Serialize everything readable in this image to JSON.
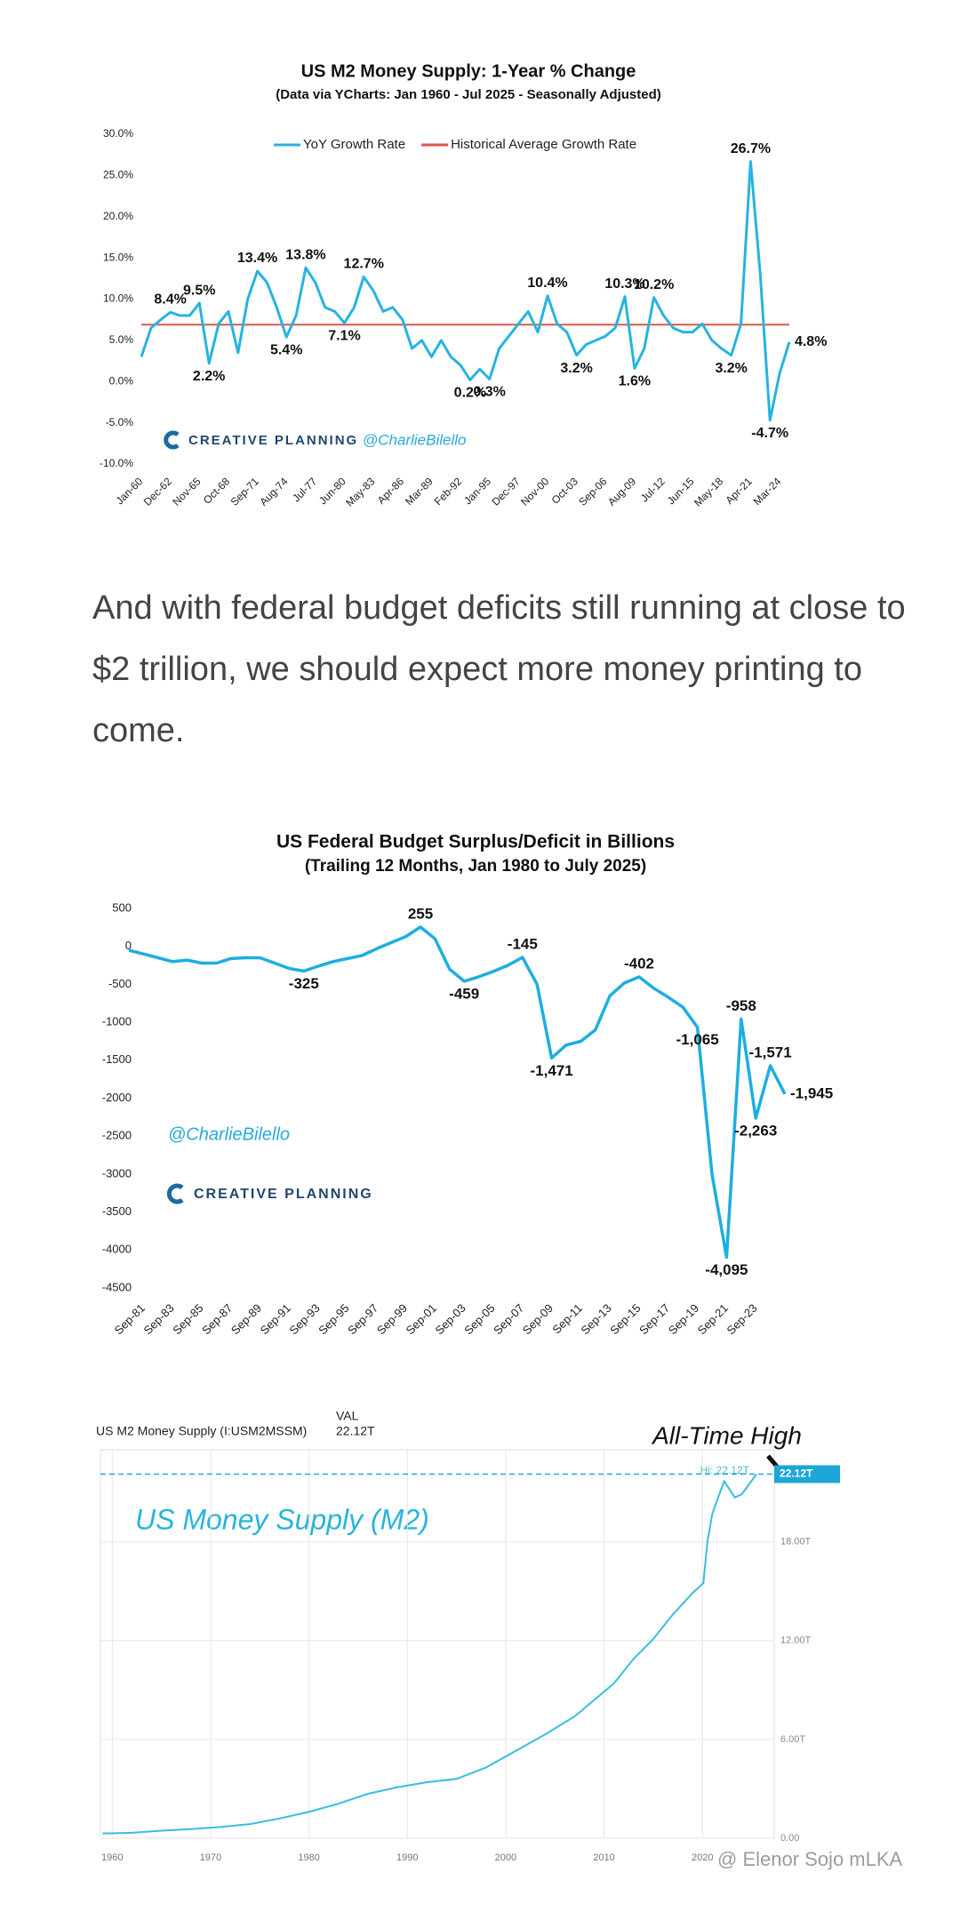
{
  "chart_data": [
    {
      "type": "line",
      "title": "US M2 Money Supply: 1-Year % Change",
      "subtitle": "(Data via YCharts: Jan 1960 - Jul 2025 - Seasonally Adjusted)",
      "categories": [
        "Jan-60",
        null,
        null,
        "Dec-62",
        null,
        null,
        "Nov-65",
        null,
        null,
        "Oct-68",
        null,
        null,
        "Sep-71",
        null,
        null,
        "Aug-74",
        null,
        null,
        "Jul-77",
        null,
        null,
        "Jun-80",
        null,
        null,
        "May-83",
        null,
        null,
        "Apr-86",
        null,
        null,
        "Mar-89",
        null,
        null,
        "Feb-92",
        null,
        null,
        "Jan-95",
        null,
        null,
        "Dec-97",
        null,
        null,
        "Nov-00",
        null,
        null,
        "Oct-03",
        null,
        null,
        "Sep-06",
        null,
        null,
        "Aug-09",
        null,
        null,
        "Jul-12",
        null,
        null,
        "Jun-15",
        null,
        null,
        "May-18",
        null,
        null,
        "Apr-21",
        null,
        null,
        "Mar-24",
        null
      ],
      "series": [
        {
          "name": "YoY Growth Rate",
          "color": "#27b3e2",
          "values": [
            3.0,
            6.5,
            7.5,
            8.4,
            8.0,
            8.0,
            9.5,
            2.2,
            7.0,
            8.5,
            3.5,
            10.0,
            13.4,
            12.0,
            9.0,
            5.4,
            8.0,
            13.8,
            12.0,
            9.0,
            8.5,
            7.1,
            9.0,
            12.7,
            11.0,
            8.5,
            9.0,
            7.5,
            4.0,
            5.0,
            3.0,
            5.0,
            3.0,
            2.0,
            0.2,
            1.5,
            0.3,
            4.0,
            5.5,
            7.0,
            8.5,
            6.0,
            10.4,
            7.0,
            6.0,
            3.2,
            4.5,
            5.0,
            5.5,
            6.5,
            10.3,
            1.6,
            4.0,
            10.2,
            8.0,
            6.5,
            6.0,
            6.0,
            7.0,
            5.0,
            4.0,
            3.2,
            7.0,
            26.7,
            13.0,
            -4.7,
            1.0,
            4.8
          ],
          "value_labels": [
            null,
            null,
            null,
            "8.4%",
            null,
            null,
            "9.5%",
            "2.2%",
            null,
            null,
            null,
            null,
            "13.4%",
            null,
            null,
            "5.4%",
            null,
            "13.8%",
            null,
            null,
            null,
            "7.1%",
            null,
            "12.7%",
            null,
            null,
            null,
            null,
            null,
            null,
            null,
            null,
            null,
            null,
            "0.2%",
            null,
            "0.3%",
            null,
            null,
            null,
            null,
            null,
            "10.4%",
            null,
            null,
            "3.2%",
            null,
            null,
            null,
            null,
            "10.3%",
            "1.6%",
            null,
            "10.2%",
            null,
            null,
            null,
            null,
            null,
            null,
            null,
            "3.2%",
            null,
            "26.7%",
            null,
            "-4.7%",
            null,
            "4.8%"
          ]
        }
      ],
      "reference_lines": [
        {
          "name": "Historical Average Growth Rate",
          "color": "#e0564a",
          "value": 6.9
        }
      ],
      "ylim": [
        -10,
        30
      ],
      "yticks": [
        {
          "value": 30,
          "label": "30.0%"
        },
        {
          "value": 25,
          "label": "25.0%"
        },
        {
          "value": 20,
          "label": "20.0%"
        },
        {
          "value": 15,
          "label": "15.0%"
        },
        {
          "value": 10,
          "label": "10.0%"
        },
        {
          "value": 5,
          "label": "5.0%"
        },
        {
          "value": 0,
          "label": "0.0%"
        },
        {
          "value": -5,
          "label": "-5.0%"
        },
        {
          "value": -10,
          "label": "-10.0%"
        }
      ],
      "grid": false,
      "legend": "top",
      "brand": "CREATIVE PLANNING",
      "handle": "@CharlieBilello"
    },
    {
      "type": "line",
      "title": "US Federal Budget Surplus/Deficit in Billions",
      "subtitle": "(Trailing 12 Months, Jan 1980 to July 2025)",
      "categories": [
        null,
        "Sep-81",
        null,
        "Sep-83",
        null,
        "Sep-85",
        null,
        "Sep-87",
        null,
        "Sep-89",
        null,
        "Sep-91",
        null,
        "Sep-93",
        null,
        "Sep-95",
        null,
        "Sep-97",
        null,
        "Sep-99",
        null,
        "Sep-01",
        null,
        "Sep-03",
        null,
        "Sep-05",
        null,
        "Sep-07",
        null,
        "Sep-09",
        null,
        "Sep-11",
        null,
        "Sep-13",
        null,
        "Sep-15",
        null,
        "Sep-17",
        null,
        "Sep-19",
        null,
        "Sep-21",
        null,
        "Sep-23",
        null,
        null
      ],
      "series": [
        {
          "color": "#1daee0",
          "values": [
            -50,
            -100,
            -150,
            -200,
            -180,
            -220,
            -220,
            -160,
            -150,
            -150,
            -220,
            -290,
            -325,
            -260,
            -200,
            -160,
            -120,
            -30,
            50,
            130,
            255,
            100,
            -300,
            -459,
            -400,
            -330,
            -250,
            -145,
            -500,
            -1471,
            -1300,
            -1250,
            -1100,
            -650,
            -480,
            -402,
            -550,
            -670,
            -800,
            -1065,
            -3000,
            -4095,
            -958,
            -2263,
            -1571,
            -1945
          ],
          "value_labels": [
            null,
            null,
            null,
            null,
            null,
            null,
            null,
            null,
            null,
            null,
            null,
            null,
            "-325",
            null,
            null,
            null,
            null,
            null,
            null,
            null,
            "255",
            null,
            null,
            "-459",
            null,
            null,
            null,
            "-145",
            null,
            "-1,471",
            null,
            null,
            null,
            null,
            null,
            "-402",
            null,
            null,
            null,
            "-1,065",
            null,
            "-4,095",
            "-958",
            "-2,263",
            "-1,571",
            "-1,945"
          ]
        }
      ],
      "ylim": [
        -4500,
        500
      ],
      "yticks": [
        500,
        0,
        -500,
        -1000,
        -1500,
        -2000,
        -2500,
        -3000,
        -3500,
        -4000,
        -4500
      ],
      "grid": false,
      "brand": "CREATIVE PLANNING",
      "handle": "@CharlieBilello"
    },
    {
      "type": "line",
      "header": "US M2 Money Supply (I:USM2MSSM)",
      "value_header": "VAL",
      "value_text": "22.12T",
      "title": "US Money Supply (M2)",
      "annotation": "All-Time High",
      "high_label": "Hi: 22.12T",
      "high_value": 22.12,
      "x": [
        1959,
        1962,
        1965,
        1968,
        1971,
        1974,
        1977,
        1980,
        1983,
        1986,
        1989,
        1992,
        1995,
        1998,
        2001,
        2004,
        2007,
        2009,
        2011,
        2013,
        2015,
        2017,
        2019,
        2020.1,
        2020.5,
        2021,
        2022.2,
        2023.3,
        2024,
        2025.5
      ],
      "series": [
        {
          "color": "#38bde0",
          "values": [
            0.29,
            0.33,
            0.46,
            0.55,
            0.68,
            0.86,
            1.2,
            1.6,
            2.1,
            2.7,
            3.1,
            3.4,
            3.6,
            4.3,
            5.3,
            6.3,
            7.4,
            8.4,
            9.4,
            10.9,
            12.1,
            13.6,
            14.9,
            15.5,
            18.0,
            19.7,
            21.7,
            20.7,
            20.9,
            22.12
          ],
          "value_labels": [
            null,
            null,
            null,
            null,
            null,
            null,
            null,
            null,
            null,
            null,
            null,
            null,
            null,
            null,
            null,
            null,
            null,
            null,
            null,
            null,
            null,
            null,
            null,
            null,
            null,
            null,
            null,
            null,
            null,
            "22.12T"
          ]
        }
      ],
      "xlim": [
        1958.8,
        2027.3
      ],
      "xticks": [
        1960,
        1970,
        1980,
        1990,
        2000,
        2010,
        2020
      ],
      "ylim": [
        0,
        23.6
      ],
      "yticks": [
        {
          "value": 0,
          "label": "0.00"
        },
        {
          "value": 6,
          "label": "6.00T"
        },
        {
          "value": 12,
          "label": "12.00T"
        },
        {
          "value": 18,
          "label": "18.00T"
        }
      ],
      "grid": true
    }
  ],
  "paragraph": "And with federal budget deficits still running at close to $2 trillion, we should expect more money printing to come.",
  "watermark": "@ Elenor Sojo mLKA"
}
